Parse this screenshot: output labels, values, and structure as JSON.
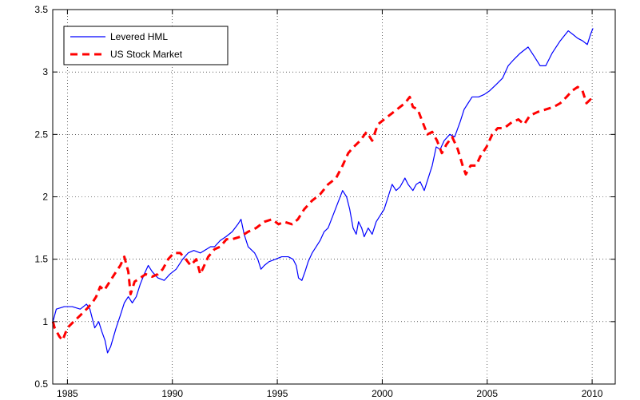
{
  "chart_data": {
    "type": "line",
    "xlim": [
      1984.3,
      2011.1
    ],
    "xticks": [
      1985,
      1990,
      1995,
      2000,
      2005,
      2010
    ],
    "ylim": [
      0.5,
      3.5
    ],
    "yticks": [
      0.5,
      1,
      1.5,
      2,
      2.5,
      3,
      3.5
    ],
    "grid": true,
    "legend": "upper left",
    "series": [
      {
        "name": "Levered HML",
        "color": "#0000ff",
        "style": "solid",
        "x": [
          1984.31,
          1984.47,
          1984.85,
          1985.23,
          1985.61,
          1985.91,
          1986.07,
          1986.3,
          1986.49,
          1986.64,
          1986.79,
          1986.91,
          1987.06,
          1987.32,
          1987.52,
          1987.71,
          1987.9,
          1988.09,
          1988.28,
          1988.47,
          1988.66,
          1988.85,
          1989.04,
          1989.31,
          1989.61,
          1989.88,
          1990.18,
          1990.49,
          1990.75,
          1991.02,
          1991.33,
          1991.63,
          1991.82,
          1992.01,
          1992.28,
          1992.55,
          1992.85,
          1993.12,
          1993.27,
          1993.42,
          1993.61,
          1993.92,
          1994.07,
          1994.22,
          1994.38,
          1994.6,
          1994.91,
          1995.21,
          1995.52,
          1995.75,
          1995.9,
          1996.01,
          1996.17,
          1996.32,
          1996.47,
          1996.66,
          1996.85,
          1997.04,
          1997.23,
          1997.42,
          1997.65,
          1997.88,
          1998.11,
          1998.3,
          1998.45,
          1998.61,
          1998.76,
          1998.87,
          1999.02,
          1999.14,
          1999.33,
          1999.52,
          1999.71,
          1999.9,
          2000.09,
          2000.28,
          2000.47,
          2000.66,
          2000.85,
          2001.08,
          2001.23,
          2001.46,
          2001.62,
          2001.81,
          2002.0,
          2002.19,
          2002.38,
          2002.57,
          2002.76,
          2002.95,
          2003.22,
          2003.45,
          2003.71,
          2003.9,
          2004.09,
          2004.28,
          2004.59,
          2004.86,
          2005.12,
          2005.43,
          2005.73,
          2006.0,
          2006.27,
          2006.57,
          2006.95,
          2007.26,
          2007.52,
          2007.79,
          2008.09,
          2008.48,
          2008.86,
          2009.09,
          2009.31,
          2009.54,
          2009.77,
          2009.92,
          2010.04
        ],
        "values": [
          1.0,
          1.1,
          1.12,
          1.12,
          1.1,
          1.14,
          1.1,
          0.95,
          1.0,
          0.92,
          0.85,
          0.75,
          0.8,
          0.95,
          1.05,
          1.15,
          1.2,
          1.15,
          1.2,
          1.3,
          1.38,
          1.45,
          1.4,
          1.35,
          1.33,
          1.38,
          1.42,
          1.5,
          1.55,
          1.57,
          1.55,
          1.58,
          1.6,
          1.6,
          1.65,
          1.68,
          1.72,
          1.78,
          1.82,
          1.7,
          1.6,
          1.55,
          1.5,
          1.42,
          1.45,
          1.48,
          1.5,
          1.52,
          1.52,
          1.5,
          1.45,
          1.35,
          1.33,
          1.4,
          1.48,
          1.55,
          1.6,
          1.65,
          1.72,
          1.75,
          1.85,
          1.95,
          2.05,
          2.0,
          1.9,
          1.75,
          1.7,
          1.8,
          1.75,
          1.68,
          1.75,
          1.7,
          1.8,
          1.85,
          1.9,
          2.0,
          2.1,
          2.05,
          2.08,
          2.15,
          2.1,
          2.05,
          2.1,
          2.12,
          2.05,
          2.15,
          2.25,
          2.4,
          2.38,
          2.45,
          2.5,
          2.48,
          2.6,
          2.7,
          2.75,
          2.8,
          2.8,
          2.82,
          2.85,
          2.9,
          2.95,
          3.05,
          3.1,
          3.15,
          3.2,
          3.12,
          3.05,
          3.05,
          3.15,
          3.25,
          3.33,
          3.3,
          3.27,
          3.25,
          3.22,
          3.3,
          3.35
        ]
      },
      {
        "name": "US Stock Market",
        "color": "#ff0000",
        "style": "dashed",
        "x": [
          1984.31,
          1984.39,
          1984.62,
          1984.77,
          1985.0,
          1985.3,
          1985.61,
          1985.91,
          1986.18,
          1986.37,
          1986.56,
          1986.75,
          1986.94,
          1987.13,
          1987.32,
          1987.52,
          1987.71,
          1987.9,
          1988.01,
          1988.2,
          1988.47,
          1988.73,
          1989.04,
          1989.31,
          1989.54,
          1989.8,
          1990.07,
          1990.37,
          1990.64,
          1990.87,
          1991.14,
          1991.33,
          1991.52,
          1991.71,
          1992.01,
          1992.28,
          1992.58,
          1992.85,
          1993.23,
          1993.61,
          1993.99,
          1994.38,
          1994.76,
          1995.06,
          1995.33,
          1995.71,
          1995.98,
          1996.28,
          1996.66,
          1997.04,
          1997.42,
          1997.8,
          1998.11,
          1998.38,
          1998.64,
          1998.95,
          1999.25,
          1999.52,
          1999.79,
          2000.09,
          2000.47,
          2000.85,
          2001.08,
          2001.31,
          2001.46,
          2001.69,
          2001.92,
          2002.15,
          2002.38,
          2002.61,
          2002.84,
          2003.06,
          2003.33,
          2003.6,
          2003.83,
          2003.98,
          2004.21,
          2004.47,
          2004.66,
          2004.97,
          2005.24,
          2005.5,
          2005.81,
          2006.19,
          2006.49,
          2006.76,
          2007.03,
          2007.41,
          2007.79,
          2008.17,
          2008.48,
          2008.78,
          2009.05,
          2009.31,
          2009.54,
          2009.73,
          2009.92,
          2010.04
        ],
        "values": [
          1.0,
          0.95,
          0.88,
          0.85,
          0.95,
          1.0,
          1.05,
          1.1,
          1.15,
          1.2,
          1.28,
          1.25,
          1.3,
          1.35,
          1.4,
          1.45,
          1.52,
          1.4,
          1.22,
          1.32,
          1.35,
          1.38,
          1.36,
          1.38,
          1.42,
          1.5,
          1.55,
          1.55,
          1.5,
          1.45,
          1.5,
          1.38,
          1.45,
          1.52,
          1.58,
          1.6,
          1.66,
          1.66,
          1.68,
          1.72,
          1.75,
          1.8,
          1.82,
          1.78,
          1.8,
          1.78,
          1.82,
          1.9,
          1.97,
          2.02,
          2.1,
          2.15,
          2.25,
          2.35,
          2.4,
          2.45,
          2.52,
          2.45,
          2.58,
          2.62,
          2.67,
          2.72,
          2.75,
          2.8,
          2.72,
          2.7,
          2.6,
          2.5,
          2.52,
          2.45,
          2.35,
          2.42,
          2.48,
          2.38,
          2.25,
          2.18,
          2.25,
          2.25,
          2.32,
          2.4,
          2.5,
          2.55,
          2.55,
          2.6,
          2.62,
          2.58,
          2.65,
          2.68,
          2.7,
          2.72,
          2.75,
          2.8,
          2.85,
          2.88,
          2.85,
          2.75,
          2.78,
          2.75
        ]
      }
    ]
  }
}
